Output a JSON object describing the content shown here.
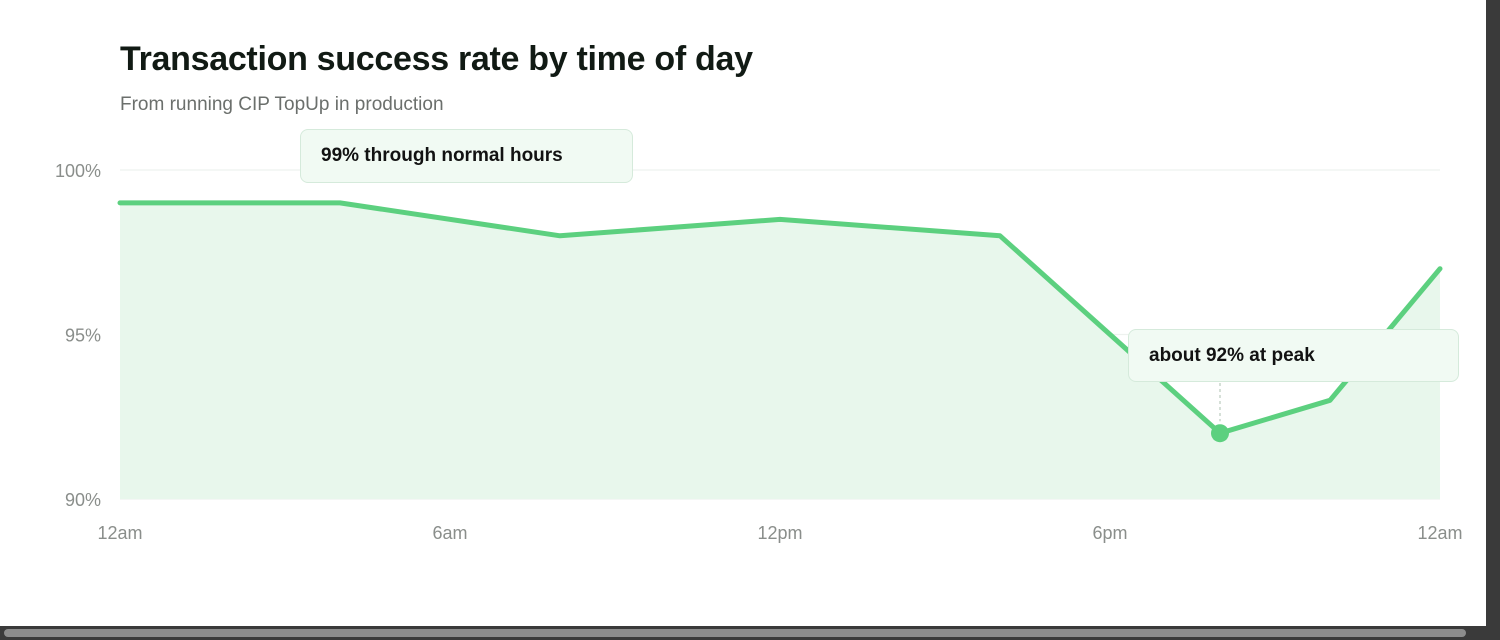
{
  "title": "Transaction success rate by time of day",
  "subtitle": "From running CIP TopUp in production",
  "colors": {
    "line": "#5cd07f",
    "area": "#e8f7ec",
    "grid": "#eef2ef",
    "callout_bg": "#f1faf3",
    "callout_border": "#d5eadb"
  },
  "chart_data": {
    "type": "area",
    "title": "Transaction success rate by time of day",
    "subtitle": "From running CIP TopUp in production",
    "x_unit": "hour of day",
    "x": [
      0,
      4,
      8,
      12,
      16,
      20,
      22,
      24
    ],
    "y": [
      99,
      99,
      98,
      98.5,
      98,
      92,
      93,
      97
    ],
    "y_unit": "%",
    "xlim": [
      0,
      24
    ],
    "ylim": [
      90,
      100
    ],
    "x_ticks": [
      0,
      6,
      12,
      18,
      24
    ],
    "x_tick_labels": [
      "12am",
      "6am",
      "12pm",
      "6pm",
      "12am"
    ],
    "y_ticks": [
      90,
      95,
      100
    ],
    "y_tick_labels": [
      "90%",
      "95%",
      "100%"
    ],
    "grid": true,
    "legend": "none",
    "highlight_point": {
      "x": 20,
      "y": 92
    },
    "annotations": [
      {
        "text": "99% through normal hours"
      },
      {
        "text": "about 92% at peak"
      }
    ]
  }
}
